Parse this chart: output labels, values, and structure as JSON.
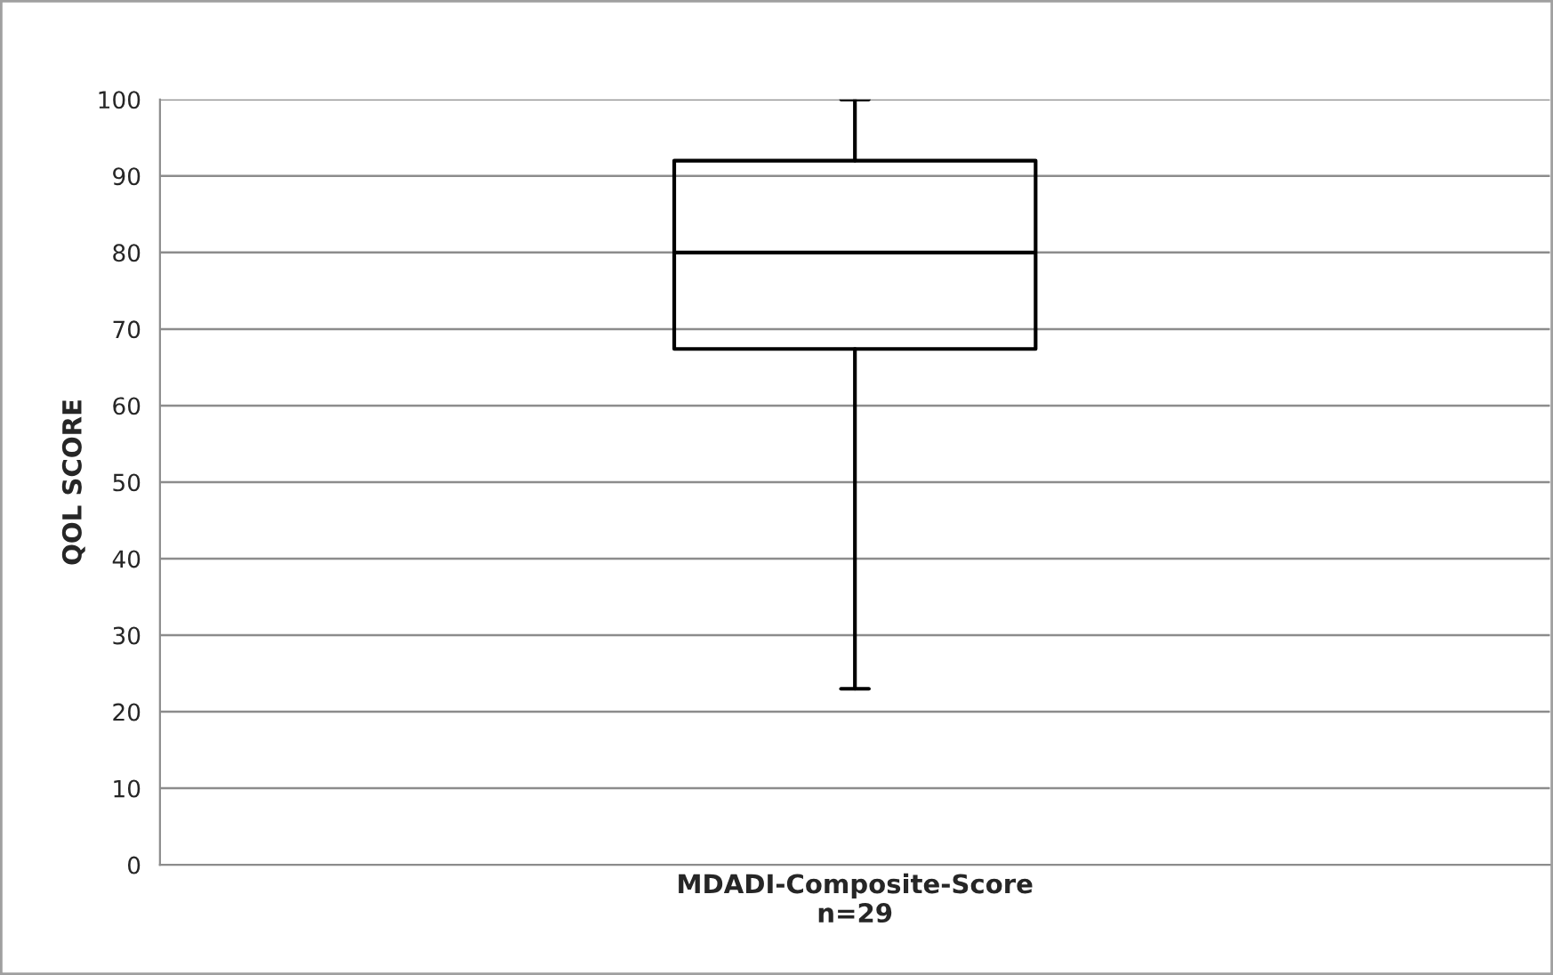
{
  "chart_data": {
    "type": "box",
    "ylabel": "QOL SCORE",
    "categories": [
      "MDADI-Composite-Score\nn=29"
    ],
    "boxes": [
      {
        "low": 23,
        "q1": 67.4,
        "median": 80,
        "q3": 92,
        "high": 100
      }
    ],
    "ylim": [
      0,
      100
    ],
    "yticks": [
      0,
      10,
      20,
      30,
      40,
      50,
      60,
      70,
      80,
      90,
      100
    ],
    "grid": "y"
  }
}
